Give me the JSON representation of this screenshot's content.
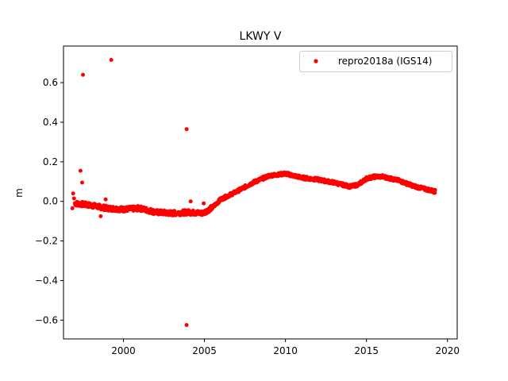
{
  "chart_data": {
    "type": "scatter",
    "title": "LKWY V",
    "xlabel": "",
    "ylabel": "m",
    "xlim": [
      1996.3,
      2020.6
    ],
    "ylim": [
      -0.695,
      0.785
    ],
    "xticks": [
      2000,
      2005,
      2010,
      2015,
      2020
    ],
    "yticks": [
      -0.6,
      -0.4,
      -0.2,
      0.0,
      0.2,
      0.4,
      0.6
    ],
    "grid": false,
    "legend_position": "top-right",
    "series": [
      {
        "name": "repro2018a (IGS14)",
        "color": "#ff0000",
        "marker": "circle",
        "trend": [
          [
            1997.0,
            -0.01
          ],
          [
            1997.5,
            -0.015
          ],
          [
            1998.0,
            -0.02
          ],
          [
            1999.0,
            -0.035
          ],
          [
            2000.0,
            -0.04
          ],
          [
            2001.0,
            -0.035
          ],
          [
            2002.0,
            -0.055
          ],
          [
            2003.0,
            -0.06
          ],
          [
            2004.0,
            -0.055
          ],
          [
            2004.9,
            -0.06
          ],
          [
            2005.5,
            -0.03
          ],
          [
            2006.0,
            0.01
          ],
          [
            2007.0,
            0.05
          ],
          [
            2008.0,
            0.095
          ],
          [
            2009.0,
            0.13
          ],
          [
            2010.0,
            0.14
          ],
          [
            2011.0,
            0.12
          ],
          [
            2012.0,
            0.11
          ],
          [
            2013.0,
            0.095
          ],
          [
            2014.0,
            0.075
          ],
          [
            2014.5,
            0.085
          ],
          [
            2015.0,
            0.115
          ],
          [
            2015.5,
            0.125
          ],
          [
            2016.0,
            0.125
          ],
          [
            2017.0,
            0.105
          ],
          [
            2018.0,
            0.075
          ],
          [
            2019.0,
            0.055
          ],
          [
            2019.25,
            0.05
          ]
        ],
        "outliers": [
          [
            1999.25,
            0.715
          ],
          [
            1997.5,
            0.64
          ],
          [
            2003.9,
            0.365
          ],
          [
            2003.9,
            -0.625
          ],
          [
            1997.35,
            0.155
          ],
          [
            1997.45,
            0.095
          ],
          [
            1996.9,
            0.04
          ],
          [
            1996.95,
            0.015
          ],
          [
            1996.85,
            -0.035
          ],
          [
            1998.6,
            -0.075
          ],
          [
            1998.9,
            0.01
          ],
          [
            2004.15,
            0.0
          ],
          [
            2004.95,
            -0.01
          ]
        ]
      }
    ]
  }
}
